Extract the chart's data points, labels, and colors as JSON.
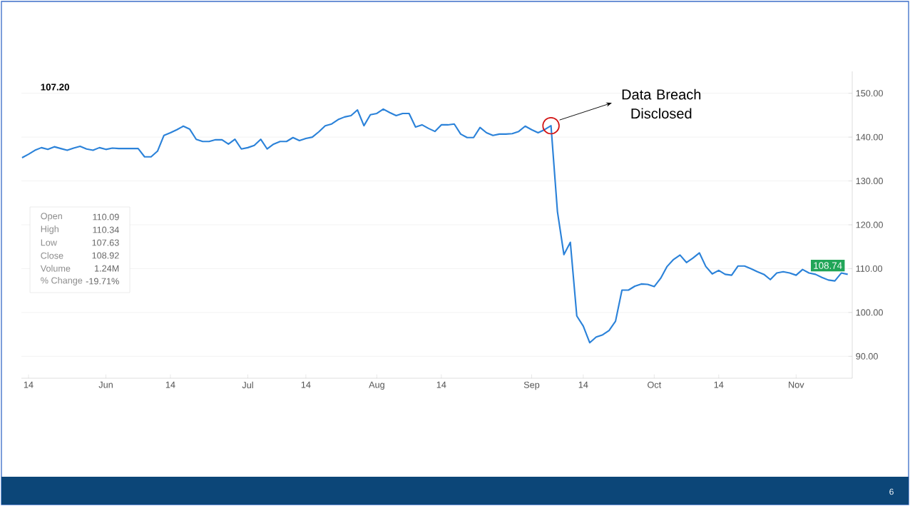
{
  "chart_data": {
    "type": "line",
    "categories": [
      null,
      "14",
      null,
      null,
      null,
      null,
      null,
      null,
      null,
      null,
      null,
      null,
      null,
      "Jun",
      null,
      null,
      null,
      null,
      null,
      null,
      null,
      null,
      null,
      "14",
      null,
      null,
      null,
      null,
      null,
      null,
      null,
      null,
      null,
      null,
      null,
      "Jul",
      null,
      null,
      null,
      null,
      null,
      null,
      null,
      null,
      "14",
      null,
      null,
      null,
      null,
      null,
      null,
      null,
      null,
      null,
      null,
      "Aug",
      null,
      null,
      null,
      null,
      null,
      null,
      null,
      null,
      null,
      "14",
      null,
      null,
      null,
      null,
      null,
      null,
      null,
      null,
      null,
      null,
      null,
      null,
      null,
      "Sep",
      null,
      null,
      null,
      null,
      null,
      null,
      null,
      "14",
      null,
      null,
      null,
      null,
      null,
      null,
      null,
      null,
      null,
      null,
      "Oct",
      null,
      null,
      null,
      null,
      null,
      null,
      null,
      null,
      null,
      "14",
      null,
      null,
      null,
      null,
      null,
      null,
      null,
      null,
      null,
      null,
      null,
      "Nov",
      null,
      null,
      null,
      null,
      null,
      null,
      null,
      null
    ],
    "series": [
      {
        "color": "#2b82d9",
        "values": [
          135.3,
          136.1,
          137.0,
          137.6,
          137.2,
          137.8,
          137.4,
          137.0,
          137.5,
          137.9,
          137.3,
          137.0,
          137.6,
          137.2,
          137.5,
          137.4,
          137.4,
          137.4,
          137.4,
          135.5,
          135.5,
          136.8,
          140.4,
          141.0,
          141.7,
          142.5,
          141.8,
          139.5,
          139.0,
          139.0,
          139.4,
          139.4,
          138.4,
          139.5,
          137.3,
          137.6,
          138.1,
          139.5,
          137.3,
          138.4,
          139.0,
          139.0,
          139.9,
          139.2,
          139.7,
          140.0,
          141.2,
          142.6,
          143.0,
          144.0,
          144.6,
          144.9,
          146.2,
          142.6,
          145.1,
          145.4,
          146.4,
          145.6,
          144.9,
          145.4,
          145.4,
          142.3,
          142.8,
          142.0,
          141.3,
          142.8,
          142.8,
          143.0,
          140.7,
          139.9,
          139.9,
          142.2,
          141.0,
          140.4,
          140.7,
          140.7,
          140.8,
          141.3,
          142.5,
          141.7,
          141.0,
          141.7,
          142.6,
          123.0,
          113.2,
          116.0,
          99.2,
          96.9,
          93.1,
          94.4,
          94.9,
          95.9,
          98.0,
          105.1,
          105.1,
          106.0,
          106.5,
          106.4,
          105.9,
          107.8,
          110.5,
          112.1,
          113.1,
          111.4,
          112.4,
          113.6,
          110.5,
          108.8,
          109.6,
          108.7,
          108.5,
          110.6,
          110.6,
          110.0,
          109.3,
          108.7,
          107.5,
          109.0,
          109.3,
          109.0,
          108.5,
          109.8,
          109.0,
          108.7,
          108.0,
          107.4,
          107.2,
          109.0,
          108.7
        ]
      }
    ],
    "ylim": [
      85,
      155
    ],
    "yticks": [
      {
        "value": 90,
        "label": "90.00"
      },
      {
        "value": 100,
        "label": "100.00"
      },
      {
        "value": 110,
        "label": "110.00"
      },
      {
        "value": 120,
        "label": "120.00"
      },
      {
        "value": 130,
        "label": "130.00"
      },
      {
        "value": 140,
        "label": "140.00"
      },
      {
        "value": 150,
        "label": "150.00"
      }
    ],
    "grid": "y",
    "marker": "none",
    "line_style": "solid",
    "annotations": [
      "Data Breach Disclosed",
      "108.74",
      "107.20",
      "Open",
      "110.09",
      "High",
      "110.34",
      "Low",
      "107.63",
      "Close",
      "108.92",
      "Volume",
      "1.24M",
      "% Change",
      "-19.71%",
      "6"
    ]
  }
}
